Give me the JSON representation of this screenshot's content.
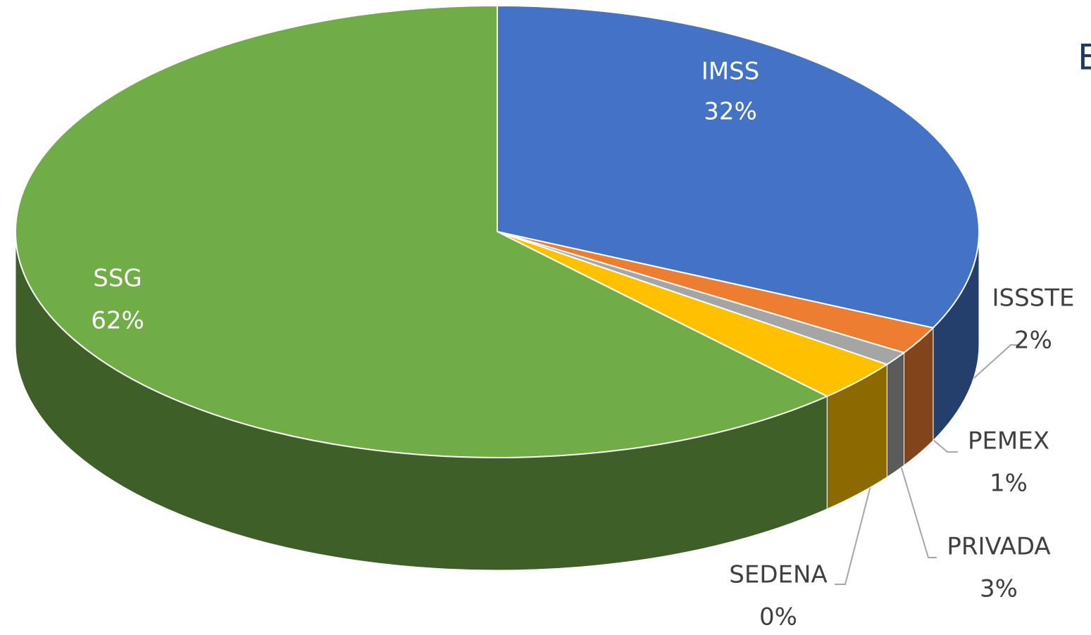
{
  "chart_data": {
    "type": "pie3d",
    "title": "E",
    "categories": [
      "IMSS",
      "ISSSTE",
      "PEMEX",
      "PRIVADA",
      "SEDENA",
      "SSG"
    ],
    "values": [
      32,
      2,
      1,
      3,
      0,
      62
    ],
    "value_labels": [
      "32%",
      "2%",
      "1%",
      "3%",
      "0%",
      "62%"
    ],
    "colors": [
      "#4472c4",
      "#ed7d31",
      "#a5a5a5",
      "#ffc000",
      "#5b9bd5",
      "#70ad47"
    ]
  }
}
